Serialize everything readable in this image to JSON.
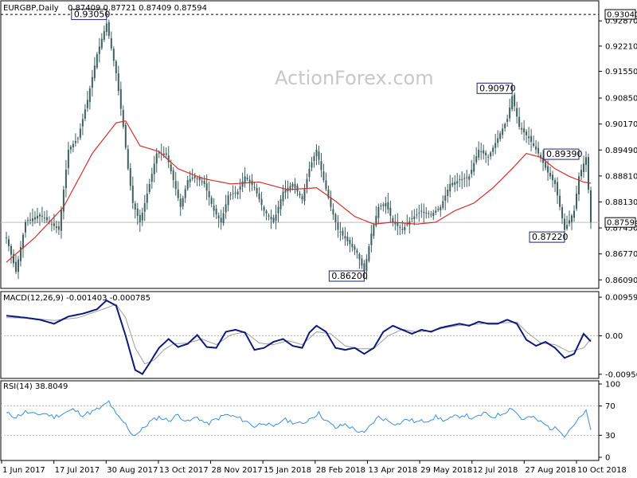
{
  "chart_data": [
    {
      "type": "candlestick",
      "symbol_header": "EURGBP,Daily",
      "ohlc_header": "0.87409 0.87721 0.87409 0.87594",
      "watermark": "ActionForex.com",
      "ylim": [
        0.8595,
        0.9325
      ],
      "y_ticks": [
        "0.92870",
        "0.92210",
        "0.91550",
        "0.90850",
        "0.90170",
        "0.89490",
        "0.88810",
        "0.88130",
        "0.87450",
        "0.86770",
        "0.86090"
      ],
      "last_price": "0.87594",
      "top_level": "0.93040",
      "x_tick_labels": [
        "1 Jun 2017",
        "17 Jul 2017",
        "30 Aug 2017",
        "13 Oct 2017",
        "28 Nov 2017",
        "15 Jan 2018",
        "28 Feb 2018",
        "13 Apr 2018",
        "29 May 2018",
        "12 Jul 2018",
        "27 Aug 2018",
        "10 Oct 2018"
      ],
      "callouts": [
        {
          "label": "0.93050",
          "value": 0.9305,
          "bar": 42
        },
        {
          "label": "0.90970",
          "value": 0.9097,
          "bar": 212
        },
        {
          "label": "0.89390",
          "value": 0.8939,
          "bar": 240
        },
        {
          "label": "0.87220",
          "value": 0.8722,
          "bar": 234
        },
        {
          "label": "0.86200",
          "value": 0.862,
          "bar": 150
        }
      ],
      "anchors": [
        [
          0,
          0.872
        ],
        [
          4,
          0.863
        ],
        [
          8,
          0.876
        ],
        [
          14,
          0.878
        ],
        [
          18,
          0.876
        ],
        [
          22,
          0.874
        ],
        [
          26,
          0.895
        ],
        [
          30,
          0.898
        ],
        [
          34,
          0.908
        ],
        [
          38,
          0.92
        ],
        [
          42,
          0.928
        ],
        [
          46,
          0.915
        ],
        [
          49,
          0.901
        ],
        [
          51,
          0.89
        ],
        [
          53,
          0.881
        ],
        [
          56,
          0.876
        ],
        [
          60,
          0.886
        ],
        [
          63,
          0.894
        ],
        [
          67,
          0.894
        ],
        [
          70,
          0.887
        ],
        [
          73,
          0.88
        ],
        [
          76,
          0.887
        ],
        [
          79,
          0.888
        ],
        [
          83,
          0.886
        ],
        [
          87,
          0.879
        ],
        [
          90,
          0.876
        ],
        [
          93,
          0.883
        ],
        [
          97,
          0.884
        ],
        [
          100,
          0.888
        ],
        [
          104,
          0.885
        ],
        [
          108,
          0.879
        ],
        [
          112,
          0.876
        ],
        [
          116,
          0.884
        ],
        [
          120,
          0.886
        ],
        [
          124,
          0.882
        ],
        [
          127,
          0.89
        ],
        [
          130,
          0.895
        ],
        [
          133,
          0.887
        ],
        [
          136,
          0.88
        ],
        [
          139,
          0.874
        ],
        [
          143,
          0.871
        ],
        [
          147,
          0.868
        ],
        [
          150,
          0.863
        ],
        [
          153,
          0.873
        ],
        [
          156,
          0.88
        ],
        [
          159,
          0.881
        ],
        [
          162,
          0.876
        ],
        [
          166,
          0.874
        ],
        [
          170,
          0.877
        ],
        [
          174,
          0.879
        ],
        [
          178,
          0.878
        ],
        [
          182,
          0.88
        ],
        [
          186,
          0.886
        ],
        [
          190,
          0.887
        ],
        [
          194,
          0.888
        ],
        [
          198,
          0.895
        ],
        [
          202,
          0.893
        ],
        [
          206,
          0.898
        ],
        [
          210,
          0.903
        ],
        [
          212,
          0.909
        ],
        [
          215,
          0.901
        ],
        [
          219,
          0.898
        ],
        [
          223,
          0.894
        ],
        [
          227,
          0.889
        ],
        [
          230,
          0.886
        ],
        [
          234,
          0.874
        ],
        [
          238,
          0.879
        ],
        [
          240,
          0.888
        ],
        [
          243,
          0.893
        ],
        [
          245,
          0.876
        ]
      ],
      "ma_anchors": [
        [
          0,
          0.8655
        ],
        [
          12,
          0.872
        ],
        [
          24,
          0.88
        ],
        [
          36,
          0.894
        ],
        [
          46,
          0.902
        ],
        [
          50,
          0.9025
        ],
        [
          56,
          0.896
        ],
        [
          64,
          0.8945
        ],
        [
          72,
          0.89
        ],
        [
          82,
          0.8875
        ],
        [
          94,
          0.886
        ],
        [
          106,
          0.8865
        ],
        [
          118,
          0.8845
        ],
        [
          130,
          0.885
        ],
        [
          138,
          0.8815
        ],
        [
          146,
          0.8775
        ],
        [
          154,
          0.8755
        ],
        [
          162,
          0.876
        ],
        [
          172,
          0.8755
        ],
        [
          180,
          0.876
        ],
        [
          188,
          0.879
        ],
        [
          196,
          0.881
        ],
        [
          204,
          0.885
        ],
        [
          212,
          0.89
        ],
        [
          218,
          0.894
        ],
        [
          224,
          0.893
        ],
        [
          230,
          0.89
        ],
        [
          236,
          0.888
        ],
        [
          242,
          0.8865
        ],
        [
          245,
          0.8862
        ]
      ],
      "bar_count": 246,
      "colors": {
        "candle": "#3e5f5e",
        "ma": "#d32f2f",
        "callout_border": "#1a237e"
      }
    },
    {
      "type": "line",
      "label": "MACD(12,26,9) -0.001403 -0.000785",
      "ylim": [
        -0.01,
        0.0102
      ],
      "y_ticks": [
        "0.009593",
        "0.00",
        "-0.009562"
      ],
      "series": [
        {
          "role": "macd",
          "color": "#0d1a7a",
          "anchors": [
            [
              0,
              0.005
            ],
            [
              8,
              0.0045
            ],
            [
              14,
              0.004
            ],
            [
              20,
              0.003
            ],
            [
              26,
              0.0048
            ],
            [
              32,
              0.0055
            ],
            [
              38,
              0.0066
            ],
            [
              42,
              0.0088
            ],
            [
              46,
              0.0075
            ],
            [
              50,
              0.0
            ],
            [
              54,
              -0.0085
            ],
            [
              57,
              -0.0095
            ],
            [
              60,
              -0.0068
            ],
            [
              64,
              -0.003
            ],
            [
              68,
              -0.0008
            ],
            [
              72,
              -0.0028
            ],
            [
              76,
              -0.002
            ],
            [
              80,
              0.0002
            ],
            [
              84,
              -0.0028
            ],
            [
              88,
              -0.003
            ],
            [
              92,
              0.001
            ],
            [
              96,
              0.0015
            ],
            [
              100,
              0.0008
            ],
            [
              104,
              -0.0035
            ],
            [
              108,
              -0.003
            ],
            [
              112,
              -0.0015
            ],
            [
              116,
              -0.0008
            ],
            [
              120,
              -0.0025
            ],
            [
              124,
              -0.003
            ],
            [
              127,
              0.0008
            ],
            [
              130,
              0.0025
            ],
            [
              134,
              0.001
            ],
            [
              138,
              -0.003
            ],
            [
              142,
              -0.0035
            ],
            [
              146,
              -0.003
            ],
            [
              150,
              -0.0045
            ],
            [
              154,
              -0.003
            ],
            [
              158,
              0.001
            ],
            [
              162,
              0.0025
            ],
            [
              166,
              0.0015
            ],
            [
              170,
              0.0005
            ],
            [
              174,
              0.0015
            ],
            [
              178,
              0.001
            ],
            [
              182,
              0.002
            ],
            [
              186,
              0.0025
            ],
            [
              190,
              0.003
            ],
            [
              194,
              0.0025
            ],
            [
              198,
              0.0035
            ],
            [
              202,
              0.003
            ],
            [
              206,
              0.003
            ],
            [
              210,
              0.004
            ],
            [
              214,
              0.003
            ],
            [
              218,
              -0.001
            ],
            [
              222,
              -0.0025
            ],
            [
              226,
              -0.0015
            ],
            [
              230,
              -0.003
            ],
            [
              234,
              -0.0055
            ],
            [
              238,
              -0.0045
            ],
            [
              242,
              0.0005
            ],
            [
              245,
              -0.0014
            ]
          ]
        },
        {
          "role": "signal",
          "color": "#9e9e9e",
          "anchors": [
            [
              0,
              0.0045
            ],
            [
              10,
              0.0044
            ],
            [
              20,
              0.0038
            ],
            [
              30,
              0.0045
            ],
            [
              40,
              0.0065
            ],
            [
              46,
              0.0078
            ],
            [
              50,
              0.0045
            ],
            [
              54,
              -0.003
            ],
            [
              58,
              -0.007
            ],
            [
              62,
              -0.006
            ],
            [
              66,
              -0.0035
            ],
            [
              70,
              -0.002
            ],
            [
              76,
              -0.0018
            ],
            [
              82,
              -0.0008
            ],
            [
              88,
              -0.0022
            ],
            [
              94,
              0.0002
            ],
            [
              100,
              0.001
            ],
            [
              106,
              -0.0018
            ],
            [
              112,
              -0.0022
            ],
            [
              118,
              -0.0012
            ],
            [
              124,
              -0.0022
            ],
            [
              130,
              0.001
            ],
            [
              136,
              0.0005
            ],
            [
              142,
              -0.0025
            ],
            [
              148,
              -0.0032
            ],
            [
              154,
              -0.0032
            ],
            [
              160,
              0.0
            ],
            [
              166,
              0.0016
            ],
            [
              172,
              0.001
            ],
            [
              178,
              0.0012
            ],
            [
              184,
              0.002
            ],
            [
              190,
              0.0026
            ],
            [
              196,
              0.0028
            ],
            [
              202,
              0.0032
            ],
            [
              208,
              0.0032
            ],
            [
              214,
              0.0034
            ],
            [
              218,
              0.001
            ],
            [
              224,
              -0.0018
            ],
            [
              230,
              -0.0022
            ],
            [
              236,
              -0.004
            ],
            [
              242,
              -0.003
            ],
            [
              245,
              -0.0008
            ]
          ]
        }
      ]
    },
    {
      "type": "line",
      "label": "RSI(14) 38.8049",
      "ylim": [
        0,
        100
      ],
      "y_ticks": [
        "100",
        "70",
        "30",
        "0"
      ],
      "levels": [
        70,
        30
      ],
      "series": [
        {
          "role": "rsi",
          "color": "#3a8fd8",
          "anchors": [
            [
              0,
              60
            ],
            [
              4,
              55
            ],
            [
              8,
              62
            ],
            [
              12,
              58
            ],
            [
              16,
              60
            ],
            [
              20,
              55
            ],
            [
              24,
              60
            ],
            [
              28,
              65
            ],
            [
              32,
              58
            ],
            [
              36,
              62
            ],
            [
              40,
              68
            ],
            [
              43,
              76
            ],
            [
              46,
              58
            ],
            [
              50,
              45
            ],
            [
              53,
              30
            ],
            [
              56,
              35
            ],
            [
              60,
              48
            ],
            [
              64,
              55
            ],
            [
              68,
              50
            ],
            [
              72,
              58
            ],
            [
              76,
              48
            ],
            [
              80,
              55
            ],
            [
              84,
              45
            ],
            [
              88,
              52
            ],
            [
              92,
              58
            ],
            [
              96,
              55
            ],
            [
              100,
              50
            ],
            [
              104,
              42
            ],
            [
              108,
              48
            ],
            [
              112,
              40
            ],
            [
              116,
              52
            ],
            [
              120,
              48
            ],
            [
              124,
              45
            ],
            [
              128,
              55
            ],
            [
              131,
              60
            ],
            [
              134,
              50
            ],
            [
              138,
              40
            ],
            [
              142,
              45
            ],
            [
              146,
              38
            ],
            [
              150,
              32
            ],
            [
              153,
              45
            ],
            [
              156,
              55
            ],
            [
              160,
              50
            ],
            [
              164,
              45
            ],
            [
              168,
              52
            ],
            [
              172,
              48
            ],
            [
              176,
              50
            ],
            [
              180,
              55
            ],
            [
              184,
              50
            ],
            [
              188,
              55
            ],
            [
              192,
              58
            ],
            [
              196,
              52
            ],
            [
              200,
              60
            ],
            [
              204,
              55
            ],
            [
              208,
              60
            ],
            [
              212,
              68
            ],
            [
              216,
              52
            ],
            [
              220,
              55
            ],
            [
              224,
              48
            ],
            [
              228,
              40
            ],
            [
              232,
              38
            ],
            [
              234,
              30
            ],
            [
              238,
              45
            ],
            [
              240,
              52
            ],
            [
              243,
              62
            ],
            [
              245,
              39
            ]
          ]
        }
      ]
    }
  ]
}
